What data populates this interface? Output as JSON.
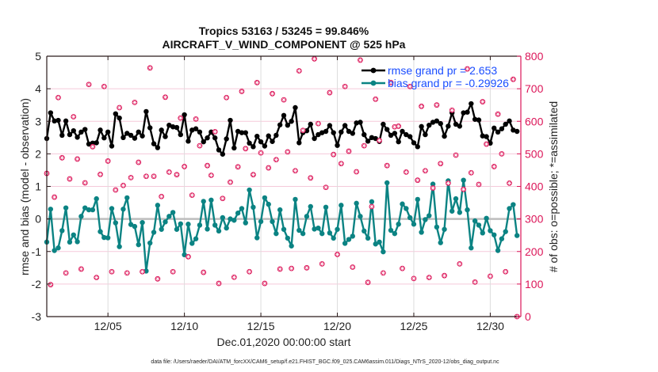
{
  "colors": {
    "rmse": "#000000",
    "bias": "#0b8383",
    "obs": "#dc1659",
    "legend_text": "#1a4dff",
    "zero_line": "#bdbdbd",
    "grid_h": "#f5c9da",
    "grid_v": "#dddddd"
  },
  "chart_data": {
    "type": "line",
    "title": "Tropics 53163 / 53245 = 99.846%",
    "subtitle": "AIRCRAFT_V_WIND_COMPONENT @ 525 hPa",
    "xlabel": "Dec.01,2020 00:00:00 start",
    "ylabel": "rmse and bias (model - observation)",
    "y2label": "# of obs: o=possible; *=assimilated",
    "footer": "data file: /Users/raeder/DAI/ATM_forcXX/CAM6_setup/f.e21.FHIST_BGC.f09_025.CAM6assim.011/Diags_NTrS_2020-12/obs_diag_output.nc",
    "xlim_days": [
      0,
      31
    ],
    "x_step_days": 0.25,
    "ylim": [
      -3,
      5
    ],
    "y2lim": [
      0,
      800
    ],
    "yticks": [
      "5",
      "4",
      "3",
      "2",
      "1",
      "0",
      "-1",
      "-2",
      "-3"
    ],
    "ytick_values": [
      5,
      4,
      3,
      2,
      1,
      0,
      -1,
      -2,
      -3
    ],
    "y2ticks": [
      "800",
      "700",
      "600",
      "500",
      "400",
      "300",
      "200",
      "100",
      "0"
    ],
    "y2tick_values": [
      800,
      700,
      600,
      500,
      400,
      300,
      200,
      100,
      0
    ],
    "xticks": [
      "12/05",
      "12/10",
      "12/15",
      "12/20",
      "12/25",
      "12/30"
    ],
    "xtick_days": [
      4,
      9,
      14,
      19,
      24,
      29
    ],
    "grid": true,
    "legend_position": "top-right",
    "legend": [
      "rmse grand pr = 2.653",
      "bias grand pr = -0.29926"
    ],
    "series": [
      {
        "name": "rmse",
        "axis": "left",
        "values": [
          2.47,
          3.26,
          3.01,
          3.03,
          2.57,
          3.01,
          2.59,
          2.71,
          2.51,
          2.67,
          2.75,
          2.3,
          2.33,
          2.34,
          2.73,
          2.49,
          2.67,
          2.24,
          3.23,
          3.1,
          2.5,
          2.63,
          2.57,
          2.48,
          2.67,
          2.55,
          3.3,
          2.8,
          2.31,
          2.19,
          2.73,
          2.53,
          2.88,
          2.83,
          2.81,
          2.59,
          3.2,
          2.39,
          2.73,
          2.77,
          2.67,
          2.37,
          2.49,
          2.67,
          2.49,
          2.12,
          1.99,
          2.46,
          3.03,
          2.18,
          2.69,
          2.65,
          2.65,
          2.33,
          2.22,
          2.54,
          2.37,
          2.24,
          2.55,
          2.38,
          2.57,
          2.89,
          3.18,
          2.88,
          3.0,
          3.42,
          2.34,
          2.65,
          2.71,
          2.91,
          2.47,
          2.59,
          2.65,
          2.69,
          2.87,
          2.65,
          2.26,
          2.67,
          2.87,
          2.69,
          2.63,
          2.95,
          2.97,
          2.59,
          2.39,
          2.5,
          2.47,
          2.38,
          2.91,
          2.75,
          2.57,
          2.63,
          2.37,
          2.69,
          2.59,
          2.53,
          2.34,
          2.22,
          2.84,
          2.59,
          2.88,
          2.97,
          3.01,
          2.93,
          2.54,
          2.85,
          3.26,
          2.91,
          2.85,
          3.26,
          3.28,
          3.54,
          3.06,
          3.04,
          2.55,
          2.53,
          2.33,
          2.79,
          2.67,
          2.77,
          2.91,
          3.01,
          2.73,
          2.69
        ]
      },
      {
        "name": "bias",
        "axis": "left",
        "values": [
          -0.71,
          0.3,
          -0.97,
          -0.89,
          -0.36,
          0.34,
          -0.71,
          -0.49,
          -0.7,
          0.08,
          0.34,
          0.28,
          0.28,
          0.62,
          -0.39,
          -0.57,
          -0.58,
          0.32,
          -0.12,
          -0.85,
          0.3,
          0.65,
          -0.17,
          -0.23,
          -0.79,
          -0.11,
          -1.6,
          -0.74,
          -0.41,
          0.42,
          -0.32,
          -0.09,
          0.08,
          0.2,
          -0.32,
          -0.15,
          -1.1,
          -0.16,
          -0.75,
          -0.61,
          -0.19,
          0.54,
          -0.31,
          0.58,
          -0.19,
          -0.37,
          0.04,
          -0.28,
          0.0,
          -0.04,
          0.18,
          0.32,
          -0.12,
          0.89,
          0.36,
          -0.58,
          -0.08,
          0.65,
          0.45,
          -0.08,
          -0.45,
          0.28,
          -0.32,
          -0.59,
          -0.83,
          0.6,
          -0.35,
          -0.45,
          0.08,
          0.38,
          -0.31,
          -0.28,
          -0.45,
          0.36,
          -0.43,
          -0.59,
          -0.32,
          0.42,
          -0.75,
          -0.63,
          -0.53,
          0.48,
          0.08,
          -0.37,
          -0.59,
          0.53,
          -0.77,
          -0.71,
          -1.01,
          1.11,
          -0.35,
          -0.45,
          -0.16,
          0.46,
          0.32,
          0.04,
          -0.16,
          0.6,
          -0.41,
          -0.02,
          0.1,
          1.07,
          -0.25,
          -0.73,
          -0.32,
          1.17,
          0.24,
          0.62,
          0.2,
          1.19,
          0.28,
          -0.89,
          -0.06,
          -0.19,
          -0.43,
          0.02,
          -0.36,
          -0.49,
          -0.97,
          -0.61,
          -0.39,
          0.32,
          0.44,
          -0.51
        ]
      },
      {
        "name": "obs_count",
        "axis": "right",
        "values": [
          440,
          98,
          367,
          673,
          488,
          134,
          423,
          614,
          484,
          146,
          411,
          713,
          522,
          120,
          437,
          707,
          478,
          138,
          389,
          642,
          403,
          134,
          427,
          658,
          474,
          138,
          431,
          764,
          431,
          116,
          369,
          674,
          444,
          138,
          436,
          610,
          461,
          184,
          373,
          607,
          525,
          136,
          464,
          434,
          568,
          102,
          363,
          673,
          413,
          121,
          460,
          692,
          516,
          138,
          436,
          719,
          503,
          102,
          457,
          685,
          482,
          146,
          666,
          506,
          148,
          448,
          755,
          572,
          150,
          426,
          792,
          593,
          162,
          397,
          688,
          498,
          191,
          470,
          707,
          508,
          152,
          445,
          788,
          525,
          105,
          338,
          668,
          541,
          134,
          464,
          719,
          583,
          585,
          148,
          444,
          707,
          117,
          419,
          646,
          448,
          120,
          395,
          650,
          470,
          126,
          410,
          634,
          496,
          162,
          391,
          761,
          442,
          106,
          406,
          660,
          530,
          124,
          461,
          622,
          500,
          138,
          410,
          729,
          0
        ]
      }
    ]
  }
}
